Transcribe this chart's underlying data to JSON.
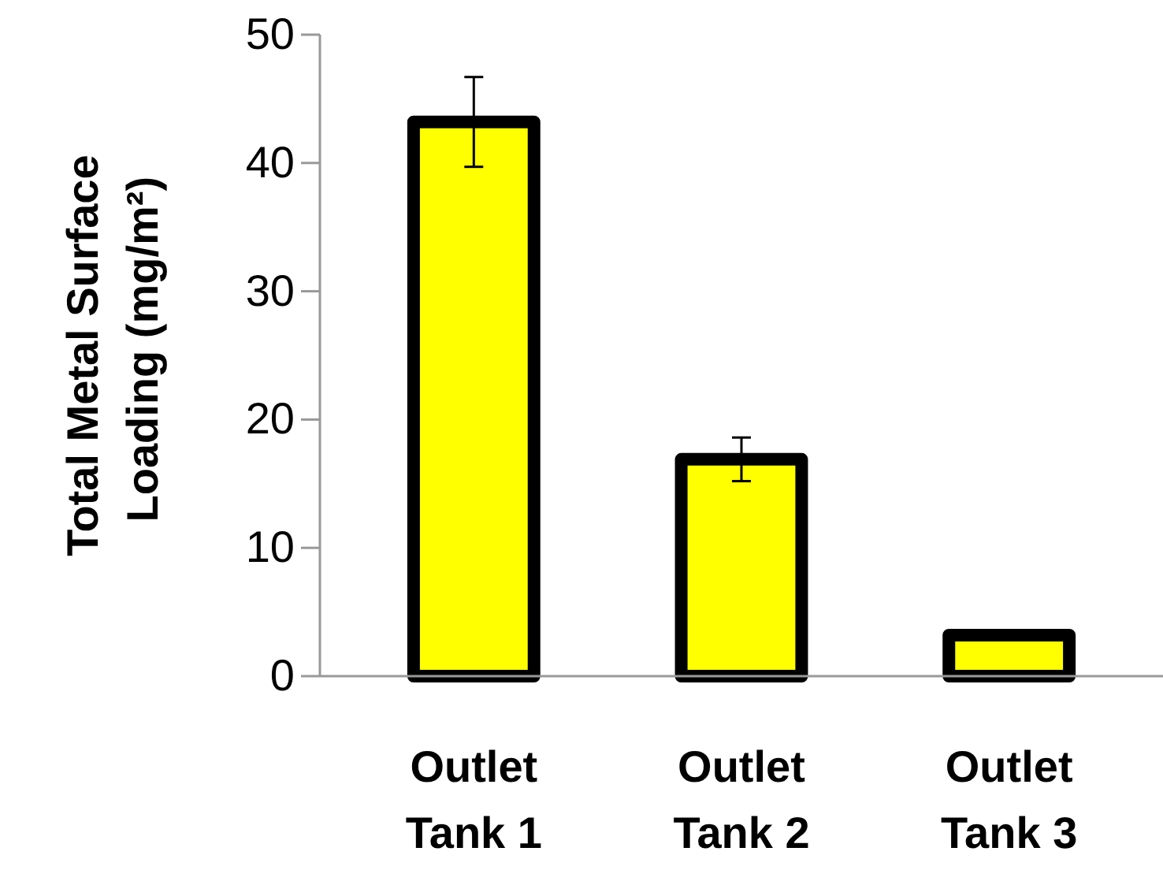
{
  "chart_data": {
    "type": "bar",
    "ylabel": "Total Metal Surface Loading (mg/m²)",
    "categories": [
      "Outlet Tank 1",
      "Outlet Tank 2",
      "Outlet Tank 3"
    ],
    "values": [
      43.2,
      16.9,
      3.2
    ],
    "errors": [
      3.5,
      1.7,
      0.3
    ],
    "color": "#ffff00",
    "ylim": [
      0,
      50
    ],
    "yticks": [
      0,
      10,
      20,
      30,
      40,
      50
    ],
    "grid": false
  }
}
